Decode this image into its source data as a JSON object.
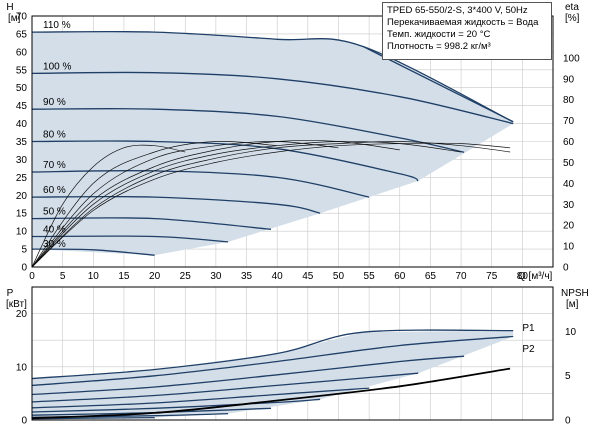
{
  "title": "TPED 65-550/2-S, 3*400 V, 50Hz",
  "info": [
    "Перекачиваемая жидкость = Вода",
    "Темп. жидкости = 20 °C",
    "Плотность = 998.2 кг/м³"
  ],
  "chart_data": [
    {
      "type": "line",
      "name": "H-Q",
      "ylabel_top": "H",
      "ylabel_unit": "[м]",
      "y2label_top": "eta",
      "y2label_unit": "[%]",
      "xlabel": "Q [м³/ч]",
      "xlim": [
        0,
        85
      ],
      "ylim": [
        0,
        70
      ],
      "xticks": [
        0,
        5,
        10,
        15,
        20,
        25,
        30,
        35,
        40,
        45,
        50,
        55,
        60,
        65,
        70,
        75,
        80
      ],
      "yticks": [
        0,
        5,
        10,
        15,
        20,
        25,
        30,
        35,
        40,
        45,
        50,
        55,
        60,
        65,
        70
      ],
      "y2ticks": [
        0,
        10,
        20,
        30,
        40,
        50,
        60,
        70,
        80,
        90,
        100
      ],
      "speed_labels": [
        "110 %",
        "100 %",
        "90 %",
        "80 %",
        "70 %",
        "60 %",
        "50 %",
        "40 %",
        "30 %"
      ],
      "series": [
        {
          "label": "110 %",
          "x": [
            0,
            20,
            40,
            54,
            78.5
          ],
          "y": [
            65.5,
            65.5,
            63.5,
            61.5,
            40.5
          ]
        },
        {
          "label": "100 %",
          "x": [
            0,
            20,
            40,
            60,
            78.5
          ],
          "y": [
            54,
            54.2,
            52.5,
            47.5,
            40
          ]
        },
        {
          "label": "90 %",
          "x": [
            0,
            20,
            40,
            60,
            70.5
          ],
          "y": [
            44,
            44,
            42,
            36,
            32
          ]
        },
        {
          "label": "80 %",
          "x": [
            0,
            20,
            40,
            60,
            63
          ],
          "y": [
            35,
            35,
            33,
            26,
            24
          ]
        },
        {
          "label": "70 %",
          "x": [
            0,
            20,
            40,
            55
          ],
          "y": [
            26.5,
            26.8,
            25,
            19.5
          ]
        },
        {
          "label": "60 %",
          "x": [
            0,
            20,
            40,
            47
          ],
          "y": [
            19.5,
            19.5,
            17.5,
            15
          ]
        },
        {
          "label": "50 %",
          "x": [
            0,
            20,
            39
          ],
          "y": [
            13.5,
            13.5,
            10.5
          ]
        },
        {
          "label": "40 %",
          "x": [
            0,
            20,
            32
          ],
          "y": [
            8.5,
            8.5,
            7
          ]
        },
        {
          "label": "30 %",
          "x": [
            0,
            10,
            20
          ],
          "y": [
            5,
            4.8,
            3.3
          ]
        }
      ],
      "eta_curves": [
        {
          "x": [
            0,
            5,
            10,
            15,
            20,
            25
          ],
          "eta": [
            0,
            30,
            48,
            57,
            58,
            55
          ]
        },
        {
          "x": [
            0,
            10,
            20,
            30,
            40
          ],
          "eta": [
            0,
            40,
            55,
            60,
            58
          ]
        },
        {
          "x": [
            0,
            10,
            20,
            30,
            40,
            50
          ],
          "eta": [
            0,
            35,
            52,
            58,
            60,
            57
          ]
        },
        {
          "x": [
            0,
            10,
            20,
            30,
            40,
            50,
            60
          ],
          "eta": [
            0,
            32,
            48,
            56,
            60,
            60,
            56
          ]
        },
        {
          "x": [
            0,
            10,
            20,
            30,
            40,
            50,
            60,
            70
          ],
          "eta": [
            0,
            30,
            46,
            54,
            58,
            60,
            59,
            55
          ]
        },
        {
          "x": [
            0,
            10,
            20,
            30,
            40,
            50,
            60,
            70,
            78
          ],
          "eta": [
            0,
            28,
            44,
            52,
            57,
            59,
            60,
            58,
            55
          ]
        },
        {
          "x": [
            0,
            10,
            20,
            30,
            40,
            50,
            60,
            70,
            78
          ],
          "eta": [
            0,
            27,
            42,
            50,
            55,
            58,
            59,
            59,
            57
          ]
        }
      ]
    },
    {
      "type": "line",
      "name": "P-Q",
      "ylabel_top": "P",
      "ylabel_unit": "[кВт]",
      "y2label_top": "NPSH",
      "y2label_unit": "[м]",
      "xlim": [
        0,
        85
      ],
      "ylim": [
        0,
        25
      ],
      "yticks": [
        0,
        10,
        20
      ],
      "y2ticks": [
        0,
        5,
        10
      ],
      "series_labels": [
        "P1",
        "P2"
      ],
      "series": [
        {
          "label": "P1",
          "x": [
            0,
            20,
            40,
            54,
            78.5
          ],
          "y": [
            7.8,
            9.5,
            12.5,
            16.5,
            16.8
          ]
        },
        {
          "label": "P2",
          "x": [
            0,
            20,
            40,
            60,
            78.5
          ],
          "y": [
            6.5,
            8.3,
            11,
            14,
            15.7
          ]
        },
        {
          "label": "",
          "x": [
            0,
            20,
            40,
            60,
            70.5
          ],
          "y": [
            4.8,
            6.2,
            8.5,
            11,
            12
          ]
        },
        {
          "label": "",
          "x": [
            0,
            20,
            40,
            63
          ],
          "y": [
            3.4,
            4.6,
            6.5,
            8.8
          ]
        },
        {
          "label": "",
          "x": [
            0,
            20,
            40,
            55
          ],
          "y": [
            2.3,
            3.2,
            4.8,
            6.0
          ]
        },
        {
          "label": "",
          "x": [
            0,
            20,
            40,
            47
          ],
          "y": [
            1.5,
            2.2,
            3.3,
            3.9
          ]
        },
        {
          "label": "",
          "x": [
            0,
            20,
            39
          ],
          "y": [
            0.9,
            1.4,
            2.2
          ]
        },
        {
          "label": "",
          "x": [
            0,
            20,
            32
          ],
          "y": [
            0.5,
            0.8,
            1.2
          ]
        },
        {
          "label": "",
          "x": [
            0,
            20
          ],
          "y": [
            0.25,
            0.45
          ]
        }
      ],
      "npsh": {
        "x": [
          0,
          20,
          40,
          60,
          78
        ],
        "y": [
          0.2,
          0.8,
          2.2,
          3.8,
          5.8
        ]
      }
    }
  ]
}
